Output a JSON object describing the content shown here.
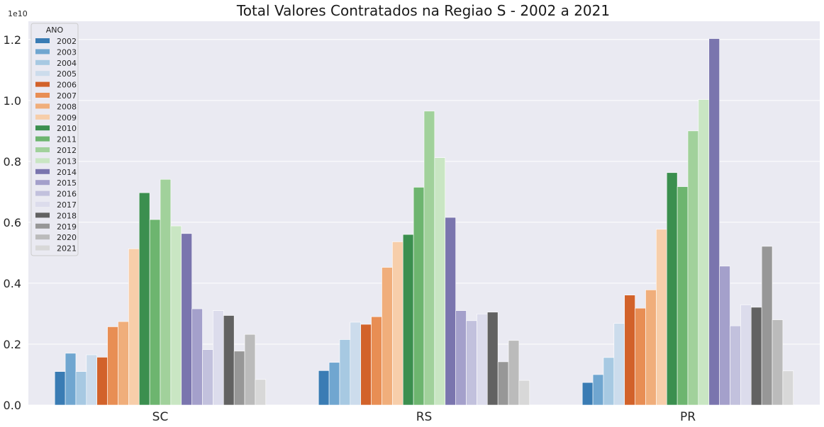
{
  "chart_data": {
    "type": "bar",
    "title": "Total Valores Contratados na Regiao S - 2002 a 2021",
    "xlabel": "",
    "ylabel": "",
    "y_exponent_label": "1e10",
    "ylim": [
      0,
      1.26
    ],
    "yticks": [
      0.0,
      0.2,
      0.4,
      0.6,
      0.8,
      1.0,
      1.2
    ],
    "ytick_labels": [
      "0.0",
      "0.2",
      "0.4",
      "0.6",
      "0.8",
      "1.0",
      "1.2"
    ],
    "categories": [
      "SC",
      "RS",
      "PR"
    ],
    "legend_title": "ANO",
    "legend_position": "top-left",
    "grid": true,
    "series": [
      {
        "name": "2002",
        "color": "#3a7cb4",
        "values": [
          0.11,
          0.113,
          0.074
        ]
      },
      {
        "name": "2003",
        "color": "#70a6d0",
        "values": [
          0.17,
          0.14,
          0.1
        ]
      },
      {
        "name": "2004",
        "color": "#a7c9e2",
        "values": [
          0.11,
          0.215,
          0.156
        ]
      },
      {
        "name": "2005",
        "color": "#ccdcec",
        "values": [
          0.165,
          0.272,
          0.268
        ]
      },
      {
        "name": "2006",
        "color": "#d2622a",
        "values": [
          0.157,
          0.265,
          0.361
        ]
      },
      {
        "name": "2007",
        "color": "#e88e54",
        "values": [
          0.257,
          0.29,
          0.318
        ]
      },
      {
        "name": "2008",
        "color": "#f0ae7b",
        "values": [
          0.274,
          0.452,
          0.378
        ]
      },
      {
        "name": "2009",
        "color": "#f7ceaa",
        "values": [
          0.513,
          0.536,
          0.577
        ]
      },
      {
        "name": "2010",
        "color": "#3b8f4f",
        "values": [
          0.697,
          0.56,
          0.763
        ]
      },
      {
        "name": "2011",
        "color": "#6db56f",
        "values": [
          0.609,
          0.715,
          0.717
        ]
      },
      {
        "name": "2012",
        "color": "#a1d19b",
        "values": [
          0.741,
          0.965,
          0.9
        ]
      },
      {
        "name": "2013",
        "color": "#c9e6c3",
        "values": [
          0.588,
          0.812,
          1.003
        ]
      },
      {
        "name": "2014",
        "color": "#7a75ae",
        "values": [
          0.563,
          0.616,
          1.203
        ]
      },
      {
        "name": "2015",
        "color": "#a4a0cb",
        "values": [
          0.316,
          0.31,
          0.456
        ]
      },
      {
        "name": "2016",
        "color": "#c2c1dd",
        "values": [
          0.182,
          0.277,
          0.26
        ]
      },
      {
        "name": "2017",
        "color": "#dcdcec",
        "values": [
          0.31,
          0.299,
          0.329
        ]
      },
      {
        "name": "2018",
        "color": "#626262",
        "values": [
          0.294,
          0.305,
          0.321
        ]
      },
      {
        "name": "2019",
        "color": "#979797",
        "values": [
          0.177,
          0.142,
          0.521
        ]
      },
      {
        "name": "2020",
        "color": "#bbbbbb",
        "values": [
          0.232,
          0.212,
          0.28
        ]
      },
      {
        "name": "2021",
        "color": "#d8d8d8",
        "values": [
          0.084,
          0.081,
          0.112
        ]
      }
    ],
    "colors": {
      "plot_background": "#eaeaf2",
      "grid": "#ffffff",
      "legend_background": "#eaeaf2",
      "legend_border": "#cccccc"
    }
  }
}
